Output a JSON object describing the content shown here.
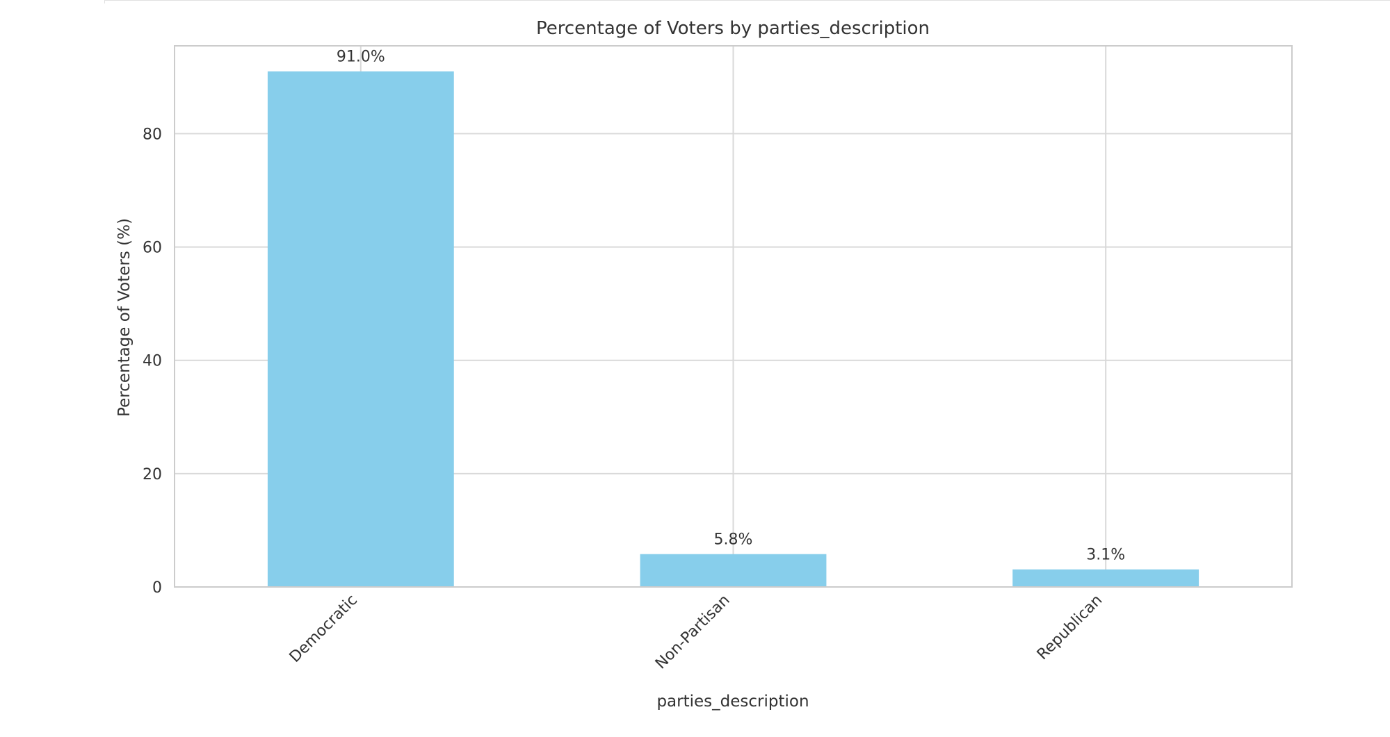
{
  "chart_data": {
    "type": "bar",
    "title": "Percentage of Voters by parties_description",
    "xlabel": "parties_description",
    "ylabel": "Percentage of Voters (%)",
    "categories": [
      "Democratic",
      "Non-Partisan",
      "Republican"
    ],
    "values": [
      91.0,
      5.8,
      3.1
    ],
    "data_labels": [
      "91.0%",
      "5.8%",
      "3.1%"
    ],
    "ylim": [
      0,
      95.5
    ],
    "yticks": [
      0,
      20,
      40,
      60,
      80
    ],
    "bar_color": "#87CEEB",
    "grid": true
  }
}
